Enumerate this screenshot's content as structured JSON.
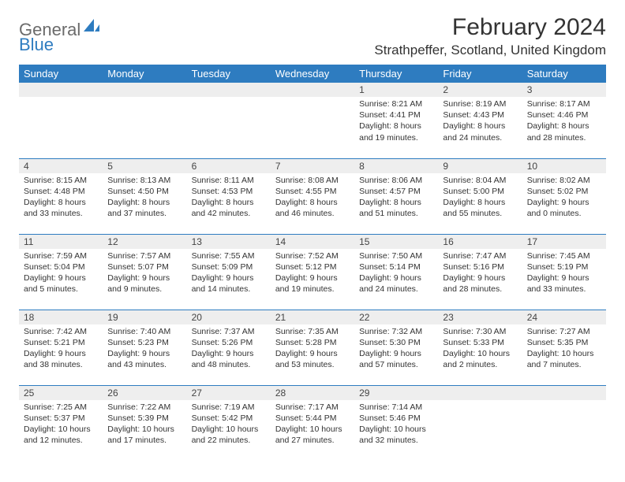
{
  "brand": {
    "part1": "General",
    "part2": "Blue"
  },
  "title": "February 2024",
  "location": "Strathpeffer, Scotland, United Kingdom",
  "colors": {
    "header_bg": "#2e7cc0",
    "header_text": "#ffffff",
    "daynum_bg": "#eeeeee",
    "border": "#2e7cc0",
    "body_text": "#333333",
    "logo_gray": "#6b6b6b",
    "logo_blue": "#2e7cc0"
  },
  "day_names": [
    "Sunday",
    "Monday",
    "Tuesday",
    "Wednesday",
    "Thursday",
    "Friday",
    "Saturday"
  ],
  "weeks": [
    [
      {
        "n": "",
        "lines": []
      },
      {
        "n": "",
        "lines": []
      },
      {
        "n": "",
        "lines": []
      },
      {
        "n": "",
        "lines": []
      },
      {
        "n": "1",
        "lines": [
          "Sunrise: 8:21 AM",
          "Sunset: 4:41 PM",
          "Daylight: 8 hours",
          "and 19 minutes."
        ]
      },
      {
        "n": "2",
        "lines": [
          "Sunrise: 8:19 AM",
          "Sunset: 4:43 PM",
          "Daylight: 8 hours",
          "and 24 minutes."
        ]
      },
      {
        "n": "3",
        "lines": [
          "Sunrise: 8:17 AM",
          "Sunset: 4:46 PM",
          "Daylight: 8 hours",
          "and 28 minutes."
        ]
      }
    ],
    [
      {
        "n": "4",
        "lines": [
          "Sunrise: 8:15 AM",
          "Sunset: 4:48 PM",
          "Daylight: 8 hours",
          "and 33 minutes."
        ]
      },
      {
        "n": "5",
        "lines": [
          "Sunrise: 8:13 AM",
          "Sunset: 4:50 PM",
          "Daylight: 8 hours",
          "and 37 minutes."
        ]
      },
      {
        "n": "6",
        "lines": [
          "Sunrise: 8:11 AM",
          "Sunset: 4:53 PM",
          "Daylight: 8 hours",
          "and 42 minutes."
        ]
      },
      {
        "n": "7",
        "lines": [
          "Sunrise: 8:08 AM",
          "Sunset: 4:55 PM",
          "Daylight: 8 hours",
          "and 46 minutes."
        ]
      },
      {
        "n": "8",
        "lines": [
          "Sunrise: 8:06 AM",
          "Sunset: 4:57 PM",
          "Daylight: 8 hours",
          "and 51 minutes."
        ]
      },
      {
        "n": "9",
        "lines": [
          "Sunrise: 8:04 AM",
          "Sunset: 5:00 PM",
          "Daylight: 8 hours",
          "and 55 minutes."
        ]
      },
      {
        "n": "10",
        "lines": [
          "Sunrise: 8:02 AM",
          "Sunset: 5:02 PM",
          "Daylight: 9 hours",
          "and 0 minutes."
        ]
      }
    ],
    [
      {
        "n": "11",
        "lines": [
          "Sunrise: 7:59 AM",
          "Sunset: 5:04 PM",
          "Daylight: 9 hours",
          "and 5 minutes."
        ]
      },
      {
        "n": "12",
        "lines": [
          "Sunrise: 7:57 AM",
          "Sunset: 5:07 PM",
          "Daylight: 9 hours",
          "and 9 minutes."
        ]
      },
      {
        "n": "13",
        "lines": [
          "Sunrise: 7:55 AM",
          "Sunset: 5:09 PM",
          "Daylight: 9 hours",
          "and 14 minutes."
        ]
      },
      {
        "n": "14",
        "lines": [
          "Sunrise: 7:52 AM",
          "Sunset: 5:12 PM",
          "Daylight: 9 hours",
          "and 19 minutes."
        ]
      },
      {
        "n": "15",
        "lines": [
          "Sunrise: 7:50 AM",
          "Sunset: 5:14 PM",
          "Daylight: 9 hours",
          "and 24 minutes."
        ]
      },
      {
        "n": "16",
        "lines": [
          "Sunrise: 7:47 AM",
          "Sunset: 5:16 PM",
          "Daylight: 9 hours",
          "and 28 minutes."
        ]
      },
      {
        "n": "17",
        "lines": [
          "Sunrise: 7:45 AM",
          "Sunset: 5:19 PM",
          "Daylight: 9 hours",
          "and 33 minutes."
        ]
      }
    ],
    [
      {
        "n": "18",
        "lines": [
          "Sunrise: 7:42 AM",
          "Sunset: 5:21 PM",
          "Daylight: 9 hours",
          "and 38 minutes."
        ]
      },
      {
        "n": "19",
        "lines": [
          "Sunrise: 7:40 AM",
          "Sunset: 5:23 PM",
          "Daylight: 9 hours",
          "and 43 minutes."
        ]
      },
      {
        "n": "20",
        "lines": [
          "Sunrise: 7:37 AM",
          "Sunset: 5:26 PM",
          "Daylight: 9 hours",
          "and 48 minutes."
        ]
      },
      {
        "n": "21",
        "lines": [
          "Sunrise: 7:35 AM",
          "Sunset: 5:28 PM",
          "Daylight: 9 hours",
          "and 53 minutes."
        ]
      },
      {
        "n": "22",
        "lines": [
          "Sunrise: 7:32 AM",
          "Sunset: 5:30 PM",
          "Daylight: 9 hours",
          "and 57 minutes."
        ]
      },
      {
        "n": "23",
        "lines": [
          "Sunrise: 7:30 AM",
          "Sunset: 5:33 PM",
          "Daylight: 10 hours",
          "and 2 minutes."
        ]
      },
      {
        "n": "24",
        "lines": [
          "Sunrise: 7:27 AM",
          "Sunset: 5:35 PM",
          "Daylight: 10 hours",
          "and 7 minutes."
        ]
      }
    ],
    [
      {
        "n": "25",
        "lines": [
          "Sunrise: 7:25 AM",
          "Sunset: 5:37 PM",
          "Daylight: 10 hours",
          "and 12 minutes."
        ]
      },
      {
        "n": "26",
        "lines": [
          "Sunrise: 7:22 AM",
          "Sunset: 5:39 PM",
          "Daylight: 10 hours",
          "and 17 minutes."
        ]
      },
      {
        "n": "27",
        "lines": [
          "Sunrise: 7:19 AM",
          "Sunset: 5:42 PM",
          "Daylight: 10 hours",
          "and 22 minutes."
        ]
      },
      {
        "n": "28",
        "lines": [
          "Sunrise: 7:17 AM",
          "Sunset: 5:44 PM",
          "Daylight: 10 hours",
          "and 27 minutes."
        ]
      },
      {
        "n": "29",
        "lines": [
          "Sunrise: 7:14 AM",
          "Sunset: 5:46 PM",
          "Daylight: 10 hours",
          "and 32 minutes."
        ]
      },
      {
        "n": "",
        "lines": []
      },
      {
        "n": "",
        "lines": []
      }
    ]
  ]
}
